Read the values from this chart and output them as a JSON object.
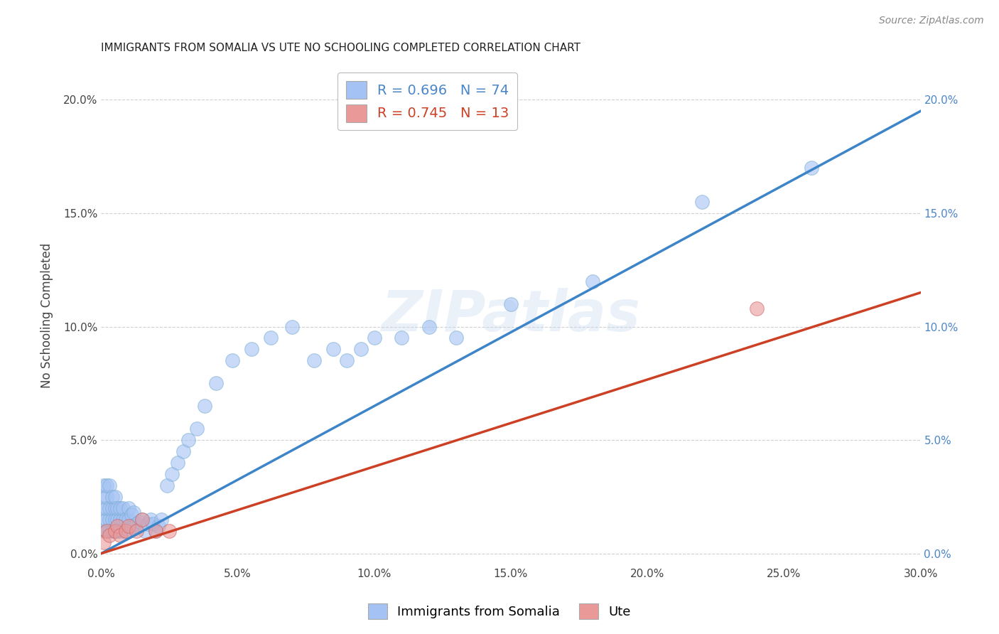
{
  "title": "IMMIGRANTS FROM SOMALIA VS UTE NO SCHOOLING COMPLETED CORRELATION CHART",
  "source": "Source: ZipAtlas.com",
  "ylabel": "No Schooling Completed",
  "watermark": "ZIPatlas",
  "xlim": [
    0.0,
    0.3
  ],
  "ylim": [
    -0.005,
    0.215
  ],
  "xticks": [
    0.0,
    0.05,
    0.1,
    0.15,
    0.2,
    0.25,
    0.3
  ],
  "xtick_labels": [
    "0.0%",
    "5.0%",
    "10.0%",
    "15.0%",
    "20.0%",
    "25.0%",
    "30.0%"
  ],
  "yticks": [
    0.0,
    0.05,
    0.1,
    0.15,
    0.2
  ],
  "ytick_labels": [
    "0.0%",
    "5.0%",
    "10.0%",
    "15.0%",
    "20.0%"
  ],
  "blue_R": 0.696,
  "blue_N": 74,
  "pink_R": 0.745,
  "pink_N": 13,
  "blue_color": "#a4c2f4",
  "pink_color": "#ea9999",
  "blue_line_color": "#3d85c8",
  "pink_line_color": "#cc4125",
  "right_tick_color": "#4a86c8",
  "legend_blue_label": "Immigrants from Somalia",
  "legend_pink_label": "Ute",
  "blue_line_x0": 0.0,
  "blue_line_y0": 0.0,
  "blue_line_x1": 0.3,
  "blue_line_y1": 0.195,
  "pink_line_x0": 0.0,
  "pink_line_y0": 0.0,
  "pink_line_x1": 0.3,
  "pink_line_y1": 0.115,
  "blue_x": [
    0.001,
    0.001,
    0.001,
    0.001,
    0.001,
    0.002,
    0.002,
    0.002,
    0.002,
    0.002,
    0.003,
    0.003,
    0.003,
    0.003,
    0.004,
    0.004,
    0.004,
    0.004,
    0.005,
    0.005,
    0.005,
    0.005,
    0.006,
    0.006,
    0.006,
    0.007,
    0.007,
    0.007,
    0.008,
    0.008,
    0.008,
    0.009,
    0.009,
    0.01,
    0.01,
    0.01,
    0.011,
    0.011,
    0.012,
    0.012,
    0.013,
    0.014,
    0.015,
    0.016,
    0.017,
    0.018,
    0.019,
    0.02,
    0.021,
    0.022,
    0.024,
    0.026,
    0.028,
    0.03,
    0.032,
    0.035,
    0.038,
    0.042,
    0.048,
    0.055,
    0.062,
    0.07,
    0.078,
    0.085,
    0.09,
    0.095,
    0.1,
    0.11,
    0.12,
    0.13,
    0.15,
    0.18,
    0.22,
    0.26
  ],
  "blue_y": [
    0.01,
    0.015,
    0.02,
    0.025,
    0.03,
    0.01,
    0.015,
    0.02,
    0.025,
    0.03,
    0.01,
    0.015,
    0.02,
    0.03,
    0.01,
    0.015,
    0.02,
    0.025,
    0.01,
    0.015,
    0.02,
    0.025,
    0.01,
    0.015,
    0.02,
    0.01,
    0.015,
    0.02,
    0.01,
    0.015,
    0.02,
    0.01,
    0.015,
    0.01,
    0.015,
    0.02,
    0.012,
    0.017,
    0.012,
    0.018,
    0.013,
    0.014,
    0.015,
    0.01,
    0.013,
    0.015,
    0.013,
    0.01,
    0.012,
    0.015,
    0.03,
    0.035,
    0.04,
    0.045,
    0.05,
    0.055,
    0.065,
    0.075,
    0.085,
    0.09,
    0.095,
    0.1,
    0.085,
    0.09,
    0.085,
    0.09,
    0.095,
    0.095,
    0.1,
    0.095,
    0.11,
    0.12,
    0.155,
    0.17
  ],
  "pink_x": [
    0.001,
    0.002,
    0.003,
    0.005,
    0.006,
    0.007,
    0.009,
    0.01,
    0.013,
    0.015,
    0.02,
    0.025,
    0.24
  ],
  "pink_y": [
    0.005,
    0.01,
    0.008,
    0.01,
    0.012,
    0.008,
    0.01,
    0.012,
    0.01,
    0.015,
    0.01,
    0.01,
    0.108
  ]
}
